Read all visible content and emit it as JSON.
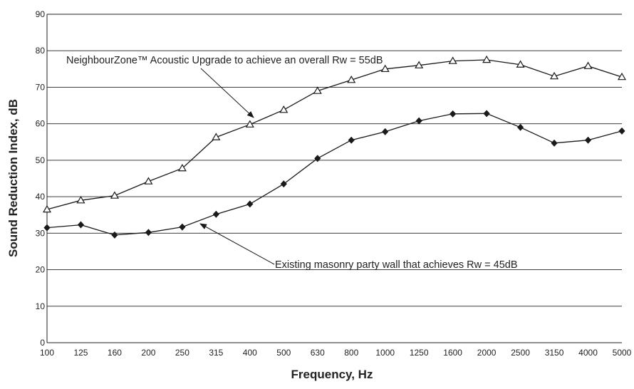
{
  "chart_data": {
    "type": "line",
    "title": "",
    "xlabel": "Frequency, Hz",
    "ylabel": "Sound Reduction Index, dB",
    "categories": [
      "100",
      "125",
      "160",
      "200",
      "250",
      "315",
      "400",
      "500",
      "630",
      "800",
      "1000",
      "1250",
      "1600",
      "2000",
      "2500",
      "3150",
      "4000",
      "5000"
    ],
    "ylim": [
      0,
      90
    ],
    "yticks": [
      "0",
      "10",
      "20",
      "30",
      "40",
      "50",
      "60",
      "70",
      "80",
      "90"
    ],
    "grid": "horizontal",
    "series": [
      {
        "name": "NeighbourZone™ Acoustic Upgrade to achieve an overall Rw = 55dB",
        "marker": "open-triangle",
        "values": [
          36.5,
          39,
          40.3,
          44.2,
          47.8,
          56.3,
          59.8,
          63.8,
          69,
          72,
          75,
          76,
          77.2,
          77.5,
          76.2,
          73,
          75.8,
          72.8
        ]
      },
      {
        "name": "Existing masonry party wall that achieves Rw = 45dB",
        "marker": "filled-diamond",
        "values": [
          31.5,
          32.3,
          29.5,
          30.2,
          31.7,
          35.2,
          38,
          43.5,
          50.5,
          55.5,
          57.8,
          60.8,
          62.7,
          62.8,
          59,
          54.7,
          55.5,
          58
        ]
      }
    ],
    "annotations": [
      {
        "text": "NeighbourZone™ Acoustic Upgrade to achieve an overall Rw = 55dB",
        "series": 0
      },
      {
        "text": "Existing masonry party wall that achieves Rw = 45dB",
        "series": 1
      }
    ],
    "colors": {
      "line": "#1a1a1a",
      "grid": "#222222",
      "plot_background": "#ffffff"
    }
  }
}
